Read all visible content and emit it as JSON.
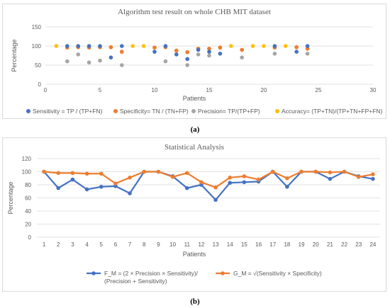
{
  "captions": {
    "a": "(a)",
    "b": "(b)"
  },
  "chart_data": [
    {
      "type": "scatter",
      "title": "Algorithm test result on whole CHB MIT dataset",
      "xlabel": "Patients",
      "ylabel": "Percentage",
      "xlim": [
        0,
        30
      ],
      "ylim": [
        0,
        150
      ],
      "xticks": [
        0,
        5,
        10,
        15,
        20,
        25,
        30
      ],
      "yticks": [
        0,
        50,
        100,
        150
      ],
      "grid": "horizontal",
      "legend_position": "bottom",
      "series": [
        {
          "name": "Sensitivity = TP / (TP+FN)",
          "color": "#4472c4",
          "x": [
            2,
            3,
            4,
            5,
            6,
            7,
            10,
            11,
            12,
            13,
            14,
            15,
            16,
            21,
            23,
            24
          ],
          "y": [
            100,
            100,
            100,
            100,
            70,
            100,
            85,
            100,
            78,
            66,
            90,
            85,
            80,
            100,
            85,
            100
          ]
        },
        {
          "name": "Specificity= TN / (TN+FP)",
          "color": "#ed7d31",
          "x": [
            2,
            3,
            4,
            5,
            6,
            7,
            10,
            11,
            12,
            13,
            14,
            15,
            16,
            18,
            21,
            23,
            24
          ],
          "y": [
            96,
            97,
            96,
            97,
            97,
            85,
            96,
            97,
            88,
            84,
            93,
            93,
            96,
            90,
            96,
            97,
            93
          ]
        },
        {
          "name": "Precision= TP/(TP+FP)",
          "color": "#a5a5a5",
          "x": [
            2,
            3,
            4,
            5,
            7,
            11,
            13,
            14,
            15,
            18,
            21,
            24
          ],
          "y": [
            60,
            78,
            57,
            62,
            50,
            60,
            50,
            78,
            75,
            70,
            80,
            80
          ]
        },
        {
          "name": "Accuracy= (TP+TN)/(TP+TN+FP+FN)",
          "color": "#ffc000",
          "x": [
            1,
            2,
            3,
            4,
            5,
            6,
            7,
            8,
            9,
            10,
            11,
            12,
            13,
            14,
            15,
            16,
            17,
            18,
            19,
            20,
            21,
            22,
            23,
            24
          ],
          "y": [
            100,
            96,
            97,
            96,
            97,
            97,
            85,
            100,
            100,
            96,
            97,
            88,
            84,
            93,
            93,
            96,
            100,
            90,
            100,
            100,
            96,
            100,
            97,
            93
          ]
        }
      ]
    },
    {
      "type": "line",
      "title": "Statistical Analysis",
      "xlabel": "Patients",
      "ylabel": "Percentage",
      "ylim": [
        0,
        120
      ],
      "yticks": [
        0,
        20,
        40,
        60,
        80,
        100,
        120
      ],
      "categories": [
        "1",
        "2",
        "3",
        "4",
        "5",
        "6",
        "7",
        "8",
        "9",
        "10",
        "11",
        "12",
        "13",
        "14",
        "15",
        "16",
        "17",
        "18",
        "19",
        "20",
        "21",
        "22",
        "23",
        "24"
      ],
      "grid": "horizontal",
      "legend_position": "bottom",
      "series": [
        {
          "name": "F_M = (2 × Precision × Sensitivity)/ (Precision + Sensitivity)",
          "name_lines": [
            "F_M = (2 × Precision × Sensitivity)/",
            "(Precision + Sensitivity)"
          ],
          "color": "#4472c4",
          "values": [
            100,
            75,
            88,
            73,
            77,
            78,
            67,
            100,
            100,
            93,
            75,
            80,
            57,
            83,
            84,
            85,
            100,
            77,
            100,
            100,
            89,
            100,
            93,
            89
          ]
        },
        {
          "name": "G_M = √(Sensitivity × Specificity)",
          "name_lines": [
            "G_M = √(Sensitivity × Specificity)"
          ],
          "color": "#ed7d31",
          "values": [
            100,
            98,
            98,
            97,
            97,
            82,
            91,
            100,
            100,
            92,
            98,
            84,
            76,
            91,
            93,
            88,
            100,
            90,
            100,
            100,
            99,
            100,
            92,
            96
          ]
        }
      ]
    }
  ]
}
